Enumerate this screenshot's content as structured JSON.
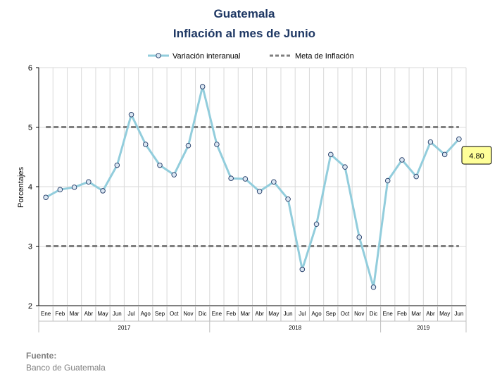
{
  "chart_data": {
    "type": "line",
    "title": "Guatemala",
    "subtitle": "Inflación al mes de Junio",
    "ylabel": "Porcentajes",
    "ylim": [
      2,
      6
    ],
    "yticks": [
      "2",
      "3",
      "4",
      "5",
      "6"
    ],
    "grid": true,
    "legend": "top-center",
    "months": [
      "Ene",
      "Feb",
      "Mar",
      "Abr",
      "May",
      "Jun",
      "Jul",
      "Ago",
      "Sep",
      "Oct",
      "Nov",
      "Dic",
      "Ene",
      "Feb",
      "Mar",
      "Abr",
      "May",
      "Jun",
      "Jul",
      "Ago",
      "Sep",
      "Oct",
      "Nov",
      "Dic",
      "Ene",
      "Feb",
      "Mar",
      "Abr",
      "May",
      "Jun"
    ],
    "year_groups": [
      {
        "label": "2017",
        "count": 12
      },
      {
        "label": "2018",
        "count": 12
      },
      {
        "label": "2019",
        "count": 6
      }
    ],
    "series": [
      {
        "name": "Variación interanual",
        "color": "#92cddc",
        "marker": "circle",
        "values": [
          3.82,
          3.95,
          3.99,
          4.08,
          3.93,
          4.36,
          5.21,
          4.71,
          4.36,
          4.2,
          4.69,
          5.68,
          4.71,
          4.14,
          4.13,
          3.92,
          4.08,
          3.79,
          2.61,
          3.37,
          4.54,
          4.33,
          3.15,
          2.31,
          4.1,
          4.45,
          4.17,
          4.75,
          4.54,
          4.8
        ]
      },
      {
        "name": "Meta de Inflación",
        "color": "#7f7f7f",
        "dashed": true,
        "bands": [
          3,
          5
        ]
      }
    ],
    "annotation": {
      "text": "4.80",
      "background": "#ffff99"
    }
  },
  "source": {
    "label": "Fuente:",
    "text": "Banco de Guatemala"
  }
}
